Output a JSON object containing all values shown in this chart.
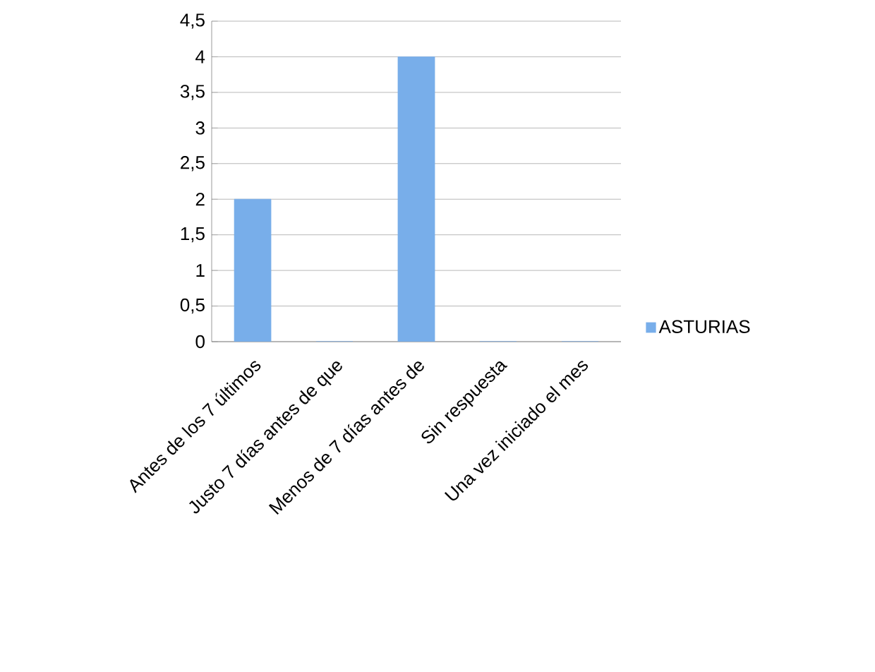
{
  "chart_data": {
    "type": "bar",
    "categories": [
      "Antes de los 7 últimos",
      "Justo 7 días antes de que",
      "Menos de 7 días antes de",
      "Sin respuesta",
      "Una vez iniciado el mes"
    ],
    "series": [
      {
        "name": "ASTURIAS",
        "color": "#78aeea",
        "values": [
          2,
          0,
          4,
          0,
          0
        ]
      }
    ],
    "ylim": [
      0,
      4.5
    ],
    "yticks": [
      0,
      {
        "value": 0.5,
        "label": "0,5"
      },
      1,
      {
        "value": 1.5,
        "label": "1,5"
      },
      2,
      {
        "value": 2.5,
        "label": "2,5"
      },
      3,
      {
        "value": 3.5,
        "label": "3,5"
      },
      4,
      {
        "value": 4.5,
        "label": "4,5"
      }
    ],
    "grid": "y",
    "legend": "right"
  }
}
